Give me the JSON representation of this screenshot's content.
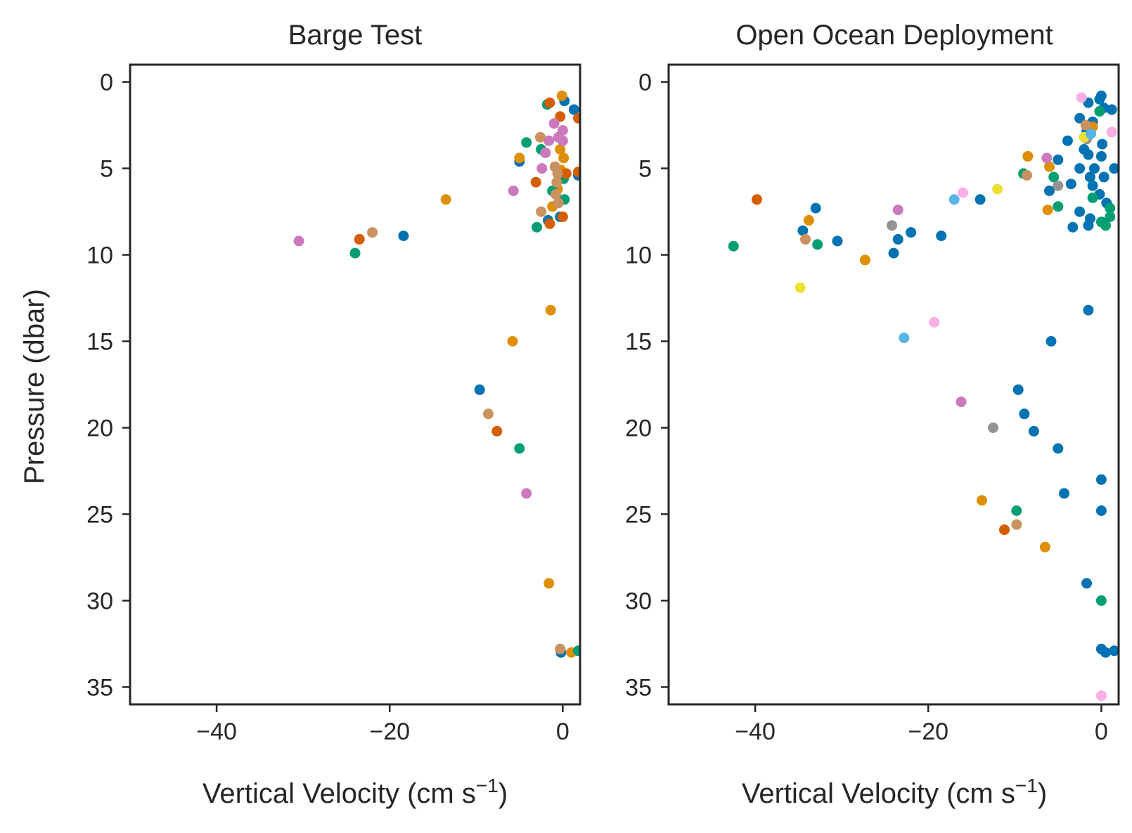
{
  "chart_data": [
    {
      "type": "scatter",
      "title": "Barge Test",
      "xlabel_main": "Vertical Velocity (cm s",
      "xlabel_sup": "−1",
      "xlabel_tail": ")",
      "ylabel": "Pressure (dbar)",
      "xlim": [
        -50,
        2
      ],
      "ylim": [
        36,
        -1
      ],
      "y_inverted": true,
      "xticks": [
        -40,
        -20,
        0
      ],
      "xtick_labels": [
        "−40",
        "−20",
        "0"
      ],
      "yticks": [
        0,
        5,
        10,
        15,
        20,
        25,
        30,
        35
      ],
      "ytick_labels": [
        "0",
        "5",
        "10",
        "15",
        "20",
        "25",
        "30",
        "35"
      ],
      "grid": false,
      "series": [
        {
          "color": "#0173b2",
          "points": [
            [
              0.2,
              1.1
            ],
            [
              1.3,
              1.6
            ],
            [
              1.8,
              5.4
            ],
            [
              -0.3,
              7.8
            ],
            [
              -1.7,
              8.0
            ],
            [
              -18.4,
              8.9
            ],
            [
              -9.6,
              17.8
            ],
            [
              -0.2,
              33.0
            ],
            [
              -5,
              4.6
            ]
          ]
        },
        {
          "color": "#de8f05",
          "points": [
            [
              -0.1,
              0.8
            ],
            [
              -5.0,
              4.4
            ],
            [
              -13.5,
              6.8
            ],
            [
              -1.4,
              13.2
            ],
            [
              -5.8,
              15.0
            ],
            [
              -1.6,
              29.0
            ],
            [
              1.0,
              33.0
            ],
            [
              -0.3,
              3.9
            ],
            [
              -0.2,
              5.1
            ],
            [
              -0.6,
              6.2
            ],
            [
              -1.2,
              7.2
            ],
            [
              0.1,
              4.4
            ],
            [
              -0.4,
              5.6
            ]
          ]
        },
        {
          "color": "#029e73",
          "points": [
            [
              -4.2,
              3.5
            ],
            [
              -2.5,
              3.9
            ],
            [
              -1.8,
              1.3
            ],
            [
              -24.0,
              9.9
            ],
            [
              -3.0,
              8.4
            ],
            [
              0.2,
              6.8
            ],
            [
              -1.2,
              6.3
            ],
            [
              0.1,
              5.6
            ],
            [
              -5.0,
              21.2
            ],
            [
              1.8,
              32.9
            ]
          ]
        },
        {
          "color": "#d55e00",
          "points": [
            [
              -1.5,
              1.2
            ],
            [
              -0.3,
              2.0
            ],
            [
              1.8,
              2.1
            ],
            [
              -3.1,
              5.8
            ],
            [
              1.8,
              5.2
            ],
            [
              0.0,
              7.8
            ],
            [
              -1.5,
              8.2
            ],
            [
              -23.5,
              9.1
            ],
            [
              -7.6,
              20.2
            ],
            [
              0.4,
              5.3
            ]
          ]
        },
        {
          "color": "#cc78bc",
          "points": [
            [
              -1.0,
              2.4
            ],
            [
              0.0,
              2.8
            ],
            [
              -0.5,
              3.2
            ],
            [
              -2.0,
              4.1
            ],
            [
              -2.4,
              5.0
            ],
            [
              -5.7,
              6.3
            ],
            [
              -30.5,
              9.2
            ],
            [
              -4.2,
              23.8
            ],
            [
              0.0,
              3.4
            ],
            [
              -1.6,
              3.4
            ]
          ]
        },
        {
          "color": "#ca9161",
          "points": [
            [
              -2.6,
              3.2
            ],
            [
              -22.0,
              8.7
            ],
            [
              -2.5,
              7.5
            ],
            [
              -8.6,
              19.2
            ],
            [
              -0.3,
              32.8
            ],
            [
              -0.9,
              4.9
            ],
            [
              -0.7,
              5.8
            ],
            [
              -0.8,
              6.5
            ],
            [
              -0.5,
              7.0
            ],
            [
              -0.6,
              5.3
            ]
          ]
        }
      ]
    },
    {
      "type": "scatter",
      "title": "Open Ocean Deployment",
      "xlabel_main": "Vertical Velocity (cm s",
      "xlabel_sup": "−1",
      "xlabel_tail": ")",
      "ylabel": "",
      "xlim": [
        -50,
        2
      ],
      "ylim": [
        36,
        -1
      ],
      "y_inverted": true,
      "xticks": [
        -40,
        -20,
        0
      ],
      "xtick_labels": [
        "−40",
        "−20",
        "0"
      ],
      "yticks": [
        0,
        5,
        10,
        15,
        20,
        25,
        30,
        35
      ],
      "ytick_labels": [
        "0",
        "5",
        "10",
        "15",
        "20",
        "25",
        "30",
        "35"
      ],
      "grid": false,
      "series": [
        {
          "color": "#0173b2",
          "points": [
            [
              0.0,
              0.8
            ],
            [
              -0.2,
              1.0
            ],
            [
              -1.5,
              1.2
            ],
            [
              0.3,
              1.5
            ],
            [
              -2.5,
              2.1
            ],
            [
              1.2,
              1.6
            ],
            [
              -1.0,
              2.3
            ],
            [
              -1.7,
              2.9
            ],
            [
              -3.9,
              3.4
            ],
            [
              -2.0,
              3.9
            ],
            [
              -1.5,
              4.2
            ],
            [
              0.1,
              3.6
            ],
            [
              -5,
              4.5
            ],
            [
              -0.8,
              5.0
            ],
            [
              0.3,
              5.5
            ],
            [
              -1.0,
              6.0
            ],
            [
              -0.2,
              6.5
            ],
            [
              0.6,
              7.0
            ],
            [
              -2.5,
              7.5
            ],
            [
              -1.3,
              7.9
            ],
            [
              -3.3,
              8.4
            ],
            [
              -1.5,
              8.3
            ],
            [
              -6.0,
              6.3
            ],
            [
              -3.5,
              5.9
            ],
            [
              -2.5,
              5.0
            ],
            [
              -14.0,
              6.8
            ],
            [
              -33.0,
              7.3
            ],
            [
              -34.5,
              8.6
            ],
            [
              -30.5,
              9.2
            ],
            [
              -23.5,
              9.1
            ],
            [
              -22.0,
              8.7
            ],
            [
              -24.0,
              9.9
            ],
            [
              -18.5,
              8.9
            ],
            [
              -1.5,
              13.2
            ],
            [
              -5.8,
              15.0
            ],
            [
              -9.6,
              17.8
            ],
            [
              -8.9,
              19.2
            ],
            [
              -7.8,
              20.2
            ],
            [
              -5.0,
              21.2
            ],
            [
              -4.3,
              23.8
            ],
            [
              0.0,
              23.0
            ],
            [
              0.0,
              24.8
            ],
            [
              -1.7,
              29.0
            ],
            [
              0.0,
              32.8
            ],
            [
              0.5,
              33.0
            ],
            [
              1.5,
              32.9
            ],
            [
              1.5,
              5.0
            ],
            [
              0.0,
              4.3
            ],
            [
              -1.3,
              5.5
            ]
          ]
        },
        {
          "color": "#de8f05",
          "points": [
            [
              -1.0,
              2.6
            ],
            [
              -8.5,
              4.3
            ],
            [
              -6.0,
              4.9
            ],
            [
              -33.8,
              8.0
            ],
            [
              -27.3,
              10.3
            ],
            [
              -13.8,
              24.2
            ],
            [
              -6.5,
              26.9
            ],
            [
              -6.2,
              7.4
            ]
          ]
        },
        {
          "color": "#029e73",
          "points": [
            [
              -0.2,
              1.7
            ],
            [
              -9.0,
              5.3
            ],
            [
              -5.5,
              5.5
            ],
            [
              -5.0,
              7.2
            ],
            [
              -1.0,
              6.7
            ],
            [
              0.0,
              8.1
            ],
            [
              0.5,
              8.3
            ],
            [
              1.0,
              7.8
            ],
            [
              1.0,
              7.3
            ],
            [
              -42.5,
              9.5
            ],
            [
              -32.8,
              9.4
            ],
            [
              -9.8,
              24.8
            ],
            [
              0.0,
              30.0
            ]
          ]
        },
        {
          "color": "#d55e00",
          "points": [
            [
              -39.8,
              6.8
            ],
            [
              -11.2,
              25.9
            ]
          ]
        },
        {
          "color": "#cc78bc",
          "points": [
            [
              -6.3,
              4.4
            ],
            [
              -23.5,
              7.4
            ],
            [
              -16.2,
              18.5
            ]
          ]
        },
        {
          "color": "#ca9161",
          "points": [
            [
              -1.8,
              2.5
            ],
            [
              -8.6,
              5.4
            ],
            [
              -34.2,
              9.1
            ],
            [
              -9.8,
              25.6
            ]
          ]
        },
        {
          "color": "#949494",
          "points": [
            [
              -5.0,
              6.0
            ],
            [
              -24.2,
              8.3
            ],
            [
              -12.5,
              20.0
            ],
            [
              -1.7,
              3.3
            ]
          ]
        },
        {
          "color": "#ece133",
          "points": [
            [
              -12.0,
              6.2
            ],
            [
              -34.8,
              11.9
            ],
            [
              -2.0,
              3.2
            ]
          ]
        },
        {
          "color": "#fbafe4",
          "points": [
            [
              -2.3,
              0.9
            ],
            [
              -16.0,
              6.4
            ],
            [
              -19.3,
              13.9
            ],
            [
              0.0,
              35.5
            ],
            [
              1.2,
              2.9
            ]
          ]
        },
        {
          "color": "#56b4e9",
          "points": [
            [
              -1.2,
              3.0
            ],
            [
              -17.0,
              6.8
            ],
            [
              -22.8,
              14.8
            ]
          ]
        }
      ]
    }
  ]
}
